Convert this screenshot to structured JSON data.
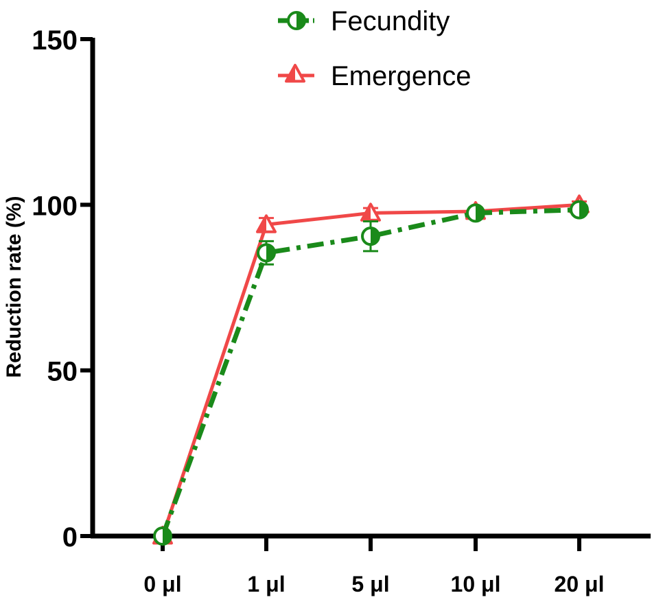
{
  "chart_data": {
    "type": "line",
    "categories": [
      "0 μl",
      "1 μl",
      "5 μl",
      "10 μl",
      "20 μl"
    ],
    "ylabel": "Reduction rate (%)",
    "xlabel": "",
    "ylim": [
      0,
      150
    ],
    "yticks": [
      0,
      50,
      100,
      150
    ],
    "legend_position": "top",
    "grid": false,
    "series": [
      {
        "name": "Fecundity",
        "values": [
          0,
          85.5,
          90.5,
          97.5,
          98.5
        ],
        "errors": [
          0,
          3.5,
          4.5,
          1.5,
          1.0
        ],
        "color": "#1a8a1a",
        "line_style": "dash-dot",
        "marker": "half-filled-circle"
      },
      {
        "name": "Emergence",
        "values": [
          0,
          94,
          97.5,
          98,
          100
        ],
        "errors": [
          0,
          2.0,
          1.5,
          1.0,
          1.0
        ],
        "color": "#f04848",
        "line_style": "solid",
        "marker": "half-filled-triangle"
      }
    ]
  }
}
